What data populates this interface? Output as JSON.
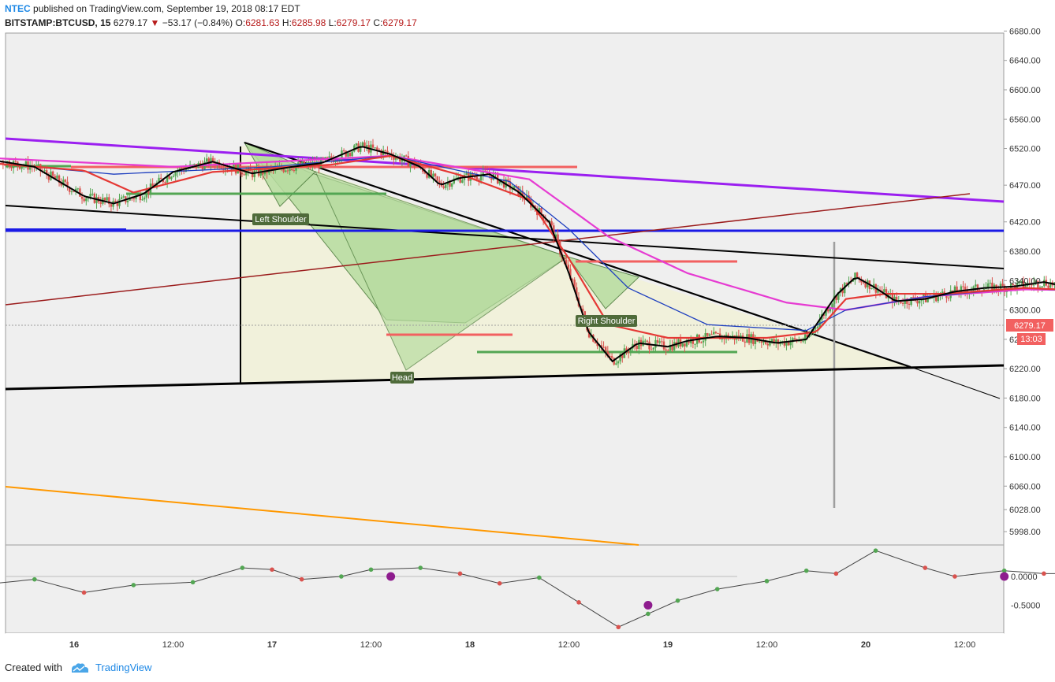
{
  "header": {
    "author": "NTEC",
    "published_text": "published on TradingView.com, September 19, 2018 08:17 EDT",
    "symbol": "BITSTAMP:BTCUSD, 15",
    "last": "6279.17",
    "change": "−53.17 (−0.84%)",
    "o_label": "O:",
    "o_value": "6281.63",
    "h_label": "H:",
    "h_value": "6285.98",
    "l_label": "L:",
    "l_value": "6279.17",
    "c_label": "C:",
    "c_value": "6279.17"
  },
  "footer": {
    "created_with": "Created with",
    "brand": "TradingView"
  },
  "colors": {
    "background": "#efefef",
    "candle_up": "#53a653",
    "candle_down": "#d9534f",
    "ema_fast": "#000000",
    "ema_red": "#e53935",
    "ema_blue": "#1e3fbf",
    "ema_magenta": "#e63bd2",
    "channel_purple": "#9b1ff0",
    "support_blue": "#1a1ae6",
    "trend_maroon": "#9b1c1c",
    "trend_orange": "#ff9800",
    "pattern_fill": "#f1f1d8",
    "triangle_fill": "#b7dca0"
  },
  "chart_data": [
    {
      "type": "line",
      "title": "BITSTAMP:BTCUSD, 15",
      "price_axis_ticks": [
        "6680.00",
        "6640.00",
        "6600.00",
        "6560.00",
        "6520.00",
        "6470.00",
        "6420.00",
        "6380.00",
        "6340.00",
        "6300.00",
        "6260.00",
        "6220.00",
        "6180.00",
        "6140.00",
        "6100.00",
        "6060.00",
        "6028.00",
        "5998.00"
      ],
      "time_axis_ticks": [
        "16",
        "12:00",
        "17",
        "12:00",
        "18",
        "12:00",
        "19",
        "12:00",
        "20",
        "12:00"
      ],
      "last_price_label": "6279.17",
      "countdown_label": "13:03",
      "price_range": [
        5980,
        6700
      ],
      "close_series": [
        {
          "t": -0.8,
          "v": 6512
        },
        {
          "t": -0.5,
          "v": 6508
        },
        {
          "t": -0.2,
          "v": 6495
        },
        {
          "t": 0.05,
          "v": 6455
        },
        {
          "t": 0.2,
          "v": 6445
        },
        {
          "t": 0.35,
          "v": 6458
        },
        {
          "t": 0.5,
          "v": 6488
        },
        {
          "t": 0.7,
          "v": 6502
        },
        {
          "t": 0.9,
          "v": 6486
        },
        {
          "t": 1.1,
          "v": 6495
        },
        {
          "t": 1.25,
          "v": 6500
        },
        {
          "t": 1.45,
          "v": 6523
        },
        {
          "t": 1.6,
          "v": 6512
        },
        {
          "t": 1.75,
          "v": 6495
        },
        {
          "t": 1.85,
          "v": 6470
        },
        {
          "t": 1.95,
          "v": 6480
        },
        {
          "t": 2.1,
          "v": 6485
        },
        {
          "t": 2.25,
          "v": 6460
        },
        {
          "t": 2.4,
          "v": 6420
        },
        {
          "t": 2.5,
          "v": 6350
        },
        {
          "t": 2.6,
          "v": 6270
        },
        {
          "t": 2.72,
          "v": 6230
        },
        {
          "t": 2.85,
          "v": 6255
        },
        {
          "t": 3.0,
          "v": 6250
        },
        {
          "t": 3.1,
          "v": 6258
        },
        {
          "t": 3.25,
          "v": 6264
        },
        {
          "t": 3.4,
          "v": 6262
        },
        {
          "t": 3.55,
          "v": 6255
        },
        {
          "t": 3.7,
          "v": 6260
        },
        {
          "t": 3.85,
          "v": 6320
        },
        {
          "t": 3.95,
          "v": 6345
        },
        {
          "t": 4.05,
          "v": 6330
        },
        {
          "t": 4.15,
          "v": 6312
        },
        {
          "t": 4.3,
          "v": 6315
        },
        {
          "t": 4.45,
          "v": 6325
        },
        {
          "t": 4.6,
          "v": 6330
        },
        {
          "t": 4.75,
          "v": 6332
        },
        {
          "t": 4.9,
          "v": 6338
        },
        {
          "t": 5.05,
          "v": 6330
        },
        {
          "t": 5.2,
          "v": 6320
        },
        {
          "t": 5.3,
          "v": 6279.17
        }
      ],
      "ema_red_series": [
        {
          "t": -0.8,
          "v": 6508
        },
        {
          "t": 0.05,
          "v": 6490
        },
        {
          "t": 0.3,
          "v": 6460
        },
        {
          "t": 0.7,
          "v": 6488
        },
        {
          "t": 1.3,
          "v": 6498
        },
        {
          "t": 1.6,
          "v": 6510
        },
        {
          "t": 2.0,
          "v": 6480
        },
        {
          "t": 2.3,
          "v": 6450
        },
        {
          "t": 2.5,
          "v": 6370
        },
        {
          "t": 2.7,
          "v": 6280
        },
        {
          "t": 3.0,
          "v": 6262
        },
        {
          "t": 3.5,
          "v": 6262
        },
        {
          "t": 3.75,
          "v": 6270
        },
        {
          "t": 3.9,
          "v": 6315
        },
        {
          "t": 4.1,
          "v": 6322
        },
        {
          "t": 4.4,
          "v": 6322
        },
        {
          "t": 4.8,
          "v": 6330
        },
        {
          "t": 5.15,
          "v": 6326
        },
        {
          "t": 5.3,
          "v": 6300
        }
      ],
      "ema_blue_series": [
        {
          "t": -0.8,
          "v": 6510
        },
        {
          "t": 0.2,
          "v": 6485
        },
        {
          "t": 1.0,
          "v": 6495
        },
        {
          "t": 1.6,
          "v": 6510
        },
        {
          "t": 2.2,
          "v": 6475
        },
        {
          "t": 2.5,
          "v": 6410
        },
        {
          "t": 2.8,
          "v": 6330
        },
        {
          "t": 3.2,
          "v": 6280
        },
        {
          "t": 3.7,
          "v": 6272
        },
        {
          "t": 3.9,
          "v": 6300
        },
        {
          "t": 4.3,
          "v": 6318
        },
        {
          "t": 4.8,
          "v": 6330
        },
        {
          "t": 5.3,
          "v": 6322
        }
      ],
      "ema_magenta_series": [
        {
          "t": -0.8,
          "v": 6512
        },
        {
          "t": 0.5,
          "v": 6495
        },
        {
          "t": 1.6,
          "v": 6510
        },
        {
          "t": 2.3,
          "v": 6478
        },
        {
          "t": 2.7,
          "v": 6400
        },
        {
          "t": 3.1,
          "v": 6350
        },
        {
          "t": 3.6,
          "v": 6310
        },
        {
          "t": 3.9,
          "v": 6300
        },
        {
          "t": 4.3,
          "v": 6318
        },
        {
          "t": 4.8,
          "v": 6328
        },
        {
          "t": 5.3,
          "v": 6326
        }
      ],
      "annotations": [
        "Left Shoulder",
        "Head",
        "Right Shoulder"
      ]
    },
    {
      "type": "line",
      "title": "",
      "ticks": [
        "0.0000",
        "-0.5000"
      ],
      "y_range": [
        -0.9,
        0.5
      ],
      "series": [
        {
          "t": -0.8,
          "v": 0.0
        },
        {
          "t": -0.4,
          "v": -0.12
        },
        {
          "t": -0.2,
          "v": -0.05
        },
        {
          "t": 0.05,
          "v": -0.28
        },
        {
          "t": 0.3,
          "v": -0.15
        },
        {
          "t": 0.6,
          "v": -0.1
        },
        {
          "t": 0.85,
          "v": 0.15
        },
        {
          "t": 1.0,
          "v": 0.12
        },
        {
          "t": 1.15,
          "v": -0.05
        },
        {
          "t": 1.35,
          "v": 0.0
        },
        {
          "t": 1.5,
          "v": 0.12
        },
        {
          "t": 1.75,
          "v": 0.15
        },
        {
          "t": 1.95,
          "v": 0.05
        },
        {
          "t": 2.15,
          "v": -0.12
        },
        {
          "t": 2.35,
          "v": -0.02
        },
        {
          "t": 2.55,
          "v": -0.45
        },
        {
          "t": 2.75,
          "v": -0.88
        },
        {
          "t": 2.9,
          "v": -0.65
        },
        {
          "t": 3.05,
          "v": -0.42
        },
        {
          "t": 3.25,
          "v": -0.22
        },
        {
          "t": 3.5,
          "v": -0.08
        },
        {
          "t": 3.7,
          "v": 0.1
        },
        {
          "t": 3.85,
          "v": 0.05
        },
        {
          "t": 4.05,
          "v": 0.45
        },
        {
          "t": 4.3,
          "v": 0.15
        },
        {
          "t": 4.45,
          "v": 0.0
        },
        {
          "t": 4.7,
          "v": 0.1
        },
        {
          "t": 4.9,
          "v": 0.05
        },
        {
          "t": 5.15,
          "v": 0.05
        },
        {
          "t": 5.3,
          "v": -0.12
        }
      ]
    }
  ]
}
